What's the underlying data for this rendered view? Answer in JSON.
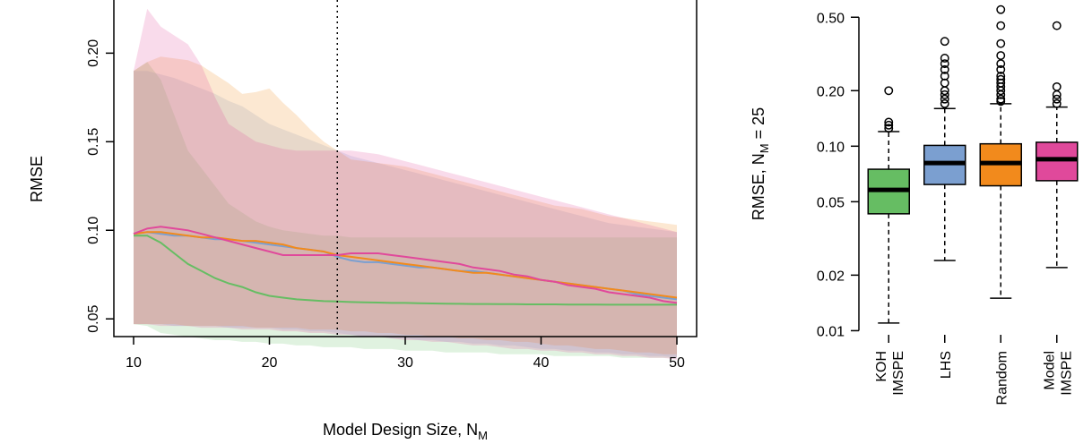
{
  "chart_data": [
    {
      "type": "line",
      "title": "",
      "xlabel": "Model Design Size, N",
      "xlabel_sub": "M",
      "ylabel": "RMSE",
      "xlim": [
        10,
        50
      ],
      "ylim": [
        0.04,
        0.23
      ],
      "x_ticks": [
        "10",
        "20",
        "30",
        "40",
        "50"
      ],
      "y_ticks": [
        "0.05",
        "0.10",
        "0.15",
        "0.20"
      ],
      "vline_x": 25,
      "grid": false,
      "x": [
        10,
        11,
        12,
        13,
        14,
        15,
        16,
        17,
        18,
        19,
        20,
        21,
        22,
        23,
        24,
        25,
        26,
        27,
        28,
        29,
        30,
        31,
        32,
        33,
        34,
        35,
        36,
        37,
        38,
        39,
        40,
        41,
        42,
        43,
        44,
        45,
        46,
        47,
        48,
        49,
        50
      ],
      "series": [
        {
          "color": "#66bd63",
          "values": [
            0.097,
            0.097,
            0.093,
            0.087,
            0.081,
            0.077,
            0.073,
            0.07,
            0.068,
            0.065,
            0.063,
            0.062,
            0.061,
            0.0605,
            0.06,
            0.0598,
            0.0595,
            0.0593,
            0.0592,
            0.059,
            0.059,
            0.0588,
            0.0587,
            0.0586,
            0.0585,
            0.0584,
            0.0584,
            0.0583,
            0.0583,
            0.0582,
            0.0582,
            0.0582,
            0.0581,
            0.0581,
            0.0581,
            0.058,
            0.058,
            0.058,
            0.058,
            0.058,
            0.058
          ],
          "band_lower": [
            0.047,
            0.046,
            0.042,
            0.041,
            0.04,
            0.039,
            0.038,
            0.038,
            0.037,
            0.037,
            0.036,
            0.036,
            0.035,
            0.035,
            0.034,
            0.034,
            0.034,
            0.033,
            0.033,
            0.033,
            0.032,
            0.032,
            0.032,
            0.031,
            0.031,
            0.031,
            0.031,
            0.03,
            0.03,
            0.03,
            0.03,
            0.029,
            0.029,
            0.029,
            0.029,
            0.029,
            0.028,
            0.028,
            0.028,
            0.028,
            0.028
          ],
          "band_upper": [
            0.19,
            0.195,
            0.185,
            0.165,
            0.145,
            0.135,
            0.125,
            0.115,
            0.11,
            0.105,
            0.102,
            0.1,
            0.099,
            0.098,
            0.097,
            0.097,
            0.096,
            0.096,
            0.096,
            0.096,
            0.096,
            0.096,
            0.096,
            0.096,
            0.096,
            0.096,
            0.096,
            0.096,
            0.096,
            0.096,
            0.096,
            0.096,
            0.096,
            0.096,
            0.096,
            0.096,
            0.096,
            0.096,
            0.096,
            0.096,
            0.096
          ]
        },
        {
          "color": "#7b9fd0",
          "values": [
            0.098,
            0.099,
            0.098,
            0.097,
            0.097,
            0.096,
            0.095,
            0.095,
            0.094,
            0.093,
            0.092,
            0.091,
            0.09,
            0.089,
            0.088,
            0.085,
            0.083,
            0.082,
            0.082,
            0.081,
            0.08,
            0.079,
            0.079,
            0.078,
            0.077,
            0.077,
            0.076,
            0.075,
            0.074,
            0.073,
            0.072,
            0.071,
            0.07,
            0.069,
            0.068,
            0.067,
            0.066,
            0.064,
            0.063,
            0.062,
            0.061
          ],
          "band_lower": [
            0.047,
            0.047,
            0.047,
            0.046,
            0.046,
            0.046,
            0.046,
            0.045,
            0.045,
            0.045,
            0.045,
            0.044,
            0.044,
            0.043,
            0.043,
            0.042,
            0.041,
            0.04,
            0.04,
            0.039,
            0.039,
            0.038,
            0.038,
            0.037,
            0.037,
            0.036,
            0.036,
            0.035,
            0.035,
            0.034,
            0.033,
            0.033,
            0.032,
            0.032,
            0.031,
            0.031,
            0.03,
            0.03,
            0.029,
            0.029,
            0.028
          ],
          "band_upper": [
            0.19,
            0.19,
            0.188,
            0.186,
            0.183,
            0.18,
            0.177,
            0.173,
            0.17,
            0.165,
            0.16,
            0.157,
            0.154,
            0.151,
            0.148,
            0.145,
            0.142,
            0.14,
            0.138,
            0.136,
            0.134,
            0.132,
            0.13,
            0.128,
            0.126,
            0.124,
            0.122,
            0.12,
            0.118,
            0.116,
            0.114,
            0.112,
            0.11,
            0.108,
            0.106,
            0.104,
            0.103,
            0.102,
            0.101,
            0.1,
            0.099
          ]
        },
        {
          "color": "#f28a1c",
          "values": [
            0.098,
            0.099,
            0.099,
            0.098,
            0.097,
            0.096,
            0.096,
            0.095,
            0.094,
            0.094,
            0.093,
            0.092,
            0.09,
            0.089,
            0.088,
            0.086,
            0.085,
            0.084,
            0.083,
            0.082,
            0.081,
            0.08,
            0.079,
            0.078,
            0.077,
            0.076,
            0.076,
            0.075,
            0.074,
            0.073,
            0.072,
            0.071,
            0.07,
            0.069,
            0.068,
            0.067,
            0.066,
            0.065,
            0.064,
            0.063,
            0.062
          ],
          "band_lower": [
            0.047,
            0.047,
            0.047,
            0.047,
            0.046,
            0.046,
            0.046,
            0.046,
            0.046,
            0.045,
            0.045,
            0.045,
            0.045,
            0.044,
            0.044,
            0.044,
            0.043,
            0.043,
            0.042,
            0.042,
            0.041,
            0.041,
            0.04,
            0.04,
            0.039,
            0.039,
            0.038,
            0.038,
            0.037,
            0.037,
            0.036,
            0.035,
            0.035,
            0.034,
            0.033,
            0.033,
            0.032,
            0.031,
            0.031,
            0.03,
            0.03
          ],
          "band_upper": [
            0.19,
            0.195,
            0.198,
            0.197,
            0.196,
            0.193,
            0.188,
            0.183,
            0.177,
            0.178,
            0.18,
            0.172,
            0.165,
            0.157,
            0.15,
            0.145,
            0.14,
            0.139,
            0.138,
            0.137,
            0.136,
            0.134,
            0.132,
            0.13,
            0.128,
            0.126,
            0.124,
            0.122,
            0.12,
            0.118,
            0.116,
            0.114,
            0.113,
            0.112,
            0.11,
            0.108,
            0.107,
            0.106,
            0.105,
            0.104,
            0.103
          ]
        },
        {
          "color": "#e0499b",
          "values": [
            0.098,
            0.101,
            0.102,
            0.101,
            0.1,
            0.098,
            0.096,
            0.094,
            0.092,
            0.09,
            0.088,
            0.086,
            0.086,
            0.086,
            0.086,
            0.086,
            0.087,
            0.087,
            0.087,
            0.086,
            0.085,
            0.084,
            0.083,
            0.082,
            0.081,
            0.079,
            0.078,
            0.077,
            0.075,
            0.074,
            0.072,
            0.071,
            0.069,
            0.068,
            0.067,
            0.065,
            0.064,
            0.063,
            0.062,
            0.06,
            0.059
          ],
          "band_lower": [
            0.047,
            0.047,
            0.046,
            0.046,
            0.046,
            0.045,
            0.045,
            0.045,
            0.044,
            0.044,
            0.044,
            0.043,
            0.043,
            0.042,
            0.042,
            0.041,
            0.041,
            0.04,
            0.04,
            0.039,
            0.038,
            0.038,
            0.037,
            0.037,
            0.036,
            0.035,
            0.035,
            0.034,
            0.033,
            0.033,
            0.032,
            0.032,
            0.031,
            0.031,
            0.03,
            0.03,
            0.029,
            0.029,
            0.028,
            0.028,
            0.027
          ],
          "band_upper": [
            0.19,
            0.225,
            0.215,
            0.21,
            0.205,
            0.193,
            0.175,
            0.16,
            0.155,
            0.15,
            0.148,
            0.146,
            0.145,
            0.145,
            0.145,
            0.145,
            0.145,
            0.144,
            0.143,
            0.141,
            0.139,
            0.137,
            0.135,
            0.133,
            0.131,
            0.129,
            0.127,
            0.125,
            0.123,
            0.121,
            0.119,
            0.117,
            0.115,
            0.113,
            0.111,
            0.109,
            0.107,
            0.105,
            0.103,
            0.101,
            0.099
          ]
        }
      ]
    },
    {
      "type": "box",
      "title": "",
      "ylabel": "RMSE, N",
      "ylabel_sub": "M",
      "ylabel_suffix": " = 25",
      "yscale": "log",
      "ylim": [
        0.0095,
        0.62
      ],
      "y_ticks": [
        {
          "value": 0.01,
          "label": "0.01"
        },
        {
          "value": 0.02,
          "label": "0.02"
        },
        {
          "value": 0.05,
          "label": "0.05"
        },
        {
          "value": 0.1,
          "label": "0.10"
        },
        {
          "value": 0.2,
          "label": "0.20"
        },
        {
          "value": 0.5,
          "label": "0.50"
        }
      ],
      "boxes": [
        {
          "label_lines": [
            "KOH",
            "IMSPE"
          ],
          "color": "#66bd63",
          "min": 0.011,
          "q1": 0.043,
          "median": 0.058,
          "q3": 0.075,
          "max": 0.12,
          "outliers": [
            0.125,
            0.13,
            0.135,
            0.2
          ]
        },
        {
          "label_lines": [
            "LHS"
          ],
          "color": "#7b9fd0",
          "min": 0.024,
          "q1": 0.062,
          "median": 0.081,
          "q3": 0.101,
          "max": 0.16,
          "outliers": [
            0.17,
            0.18,
            0.19,
            0.2,
            0.22,
            0.24,
            0.26,
            0.28,
            0.3,
            0.37
          ]
        },
        {
          "label_lines": [
            "Random"
          ],
          "color": "#f28a1c",
          "min": 0.015,
          "q1": 0.061,
          "median": 0.081,
          "q3": 0.103,
          "max": 0.17,
          "outliers": [
            0.175,
            0.18,
            0.19,
            0.2,
            0.21,
            0.22,
            0.23,
            0.24,
            0.26,
            0.28,
            0.31,
            0.36,
            0.45,
            0.55
          ]
        },
        {
          "label_lines": [
            "Model",
            "IMSPE"
          ],
          "color": "#e0499b",
          "min": 0.022,
          "q1": 0.065,
          "median": 0.085,
          "q3": 0.105,
          "max": 0.163,
          "outliers": [
            0.17,
            0.18,
            0.19,
            0.21,
            0.45
          ]
        }
      ]
    }
  ]
}
